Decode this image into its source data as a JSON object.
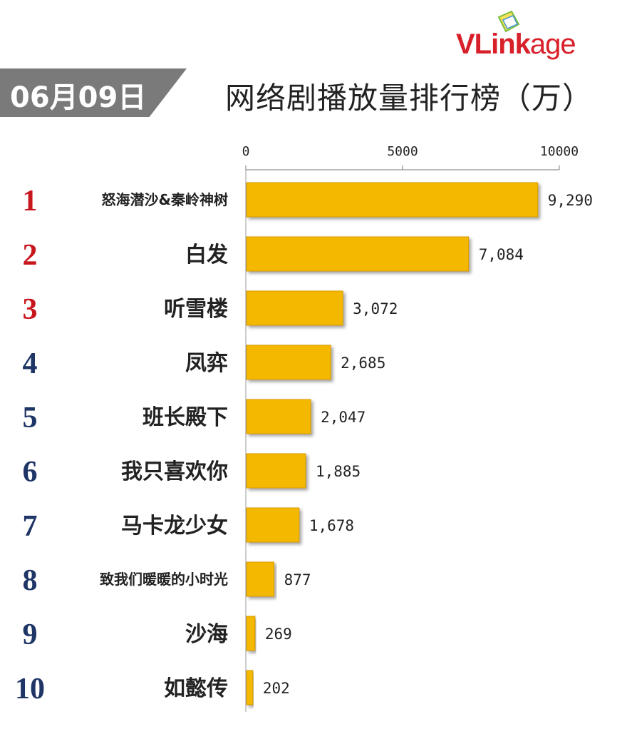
{
  "brand": {
    "logo_text": "VLinkage",
    "logo_part1": "VLink",
    "logo_part2": "age",
    "color": "#d7202a"
  },
  "date_label": "06月09日",
  "chart_data": {
    "type": "bar",
    "orientation": "horizontal",
    "title": "网络剧播放量排行榜（万）",
    "ranks": [
      "1",
      "2",
      "3",
      "4",
      "5",
      "6",
      "7",
      "8",
      "9",
      "10"
    ],
    "categories": [
      "怒海潜沙&秦岭神树",
      "白发",
      "听雪楼",
      "凤弈",
      "班长殿下",
      "我只喜欢你",
      "马卡龙少女",
      "致我们暖暖的小时光",
      "沙海",
      "如懿传"
    ],
    "values": [
      9290,
      7084,
      3072,
      2685,
      2047,
      1885,
      1678,
      877,
      269,
      202
    ],
    "value_labels": [
      "9,290",
      "7,084",
      "3,072",
      "2,685",
      "2,047",
      "1,885",
      "1,678",
      "877",
      "269",
      "202"
    ],
    "xlim": [
      0,
      10000
    ],
    "x_ticks": [
      "0",
      "5000",
      "10000"
    ],
    "x_axis_position": "top",
    "grid": false,
    "legend": "none",
    "colors": {
      "bar": "#f5b800",
      "bar_edge": "#d89a00",
      "rank_top": "#c8161d",
      "rank_other": "#1f3566",
      "badge": "#7a7a7a"
    }
  }
}
